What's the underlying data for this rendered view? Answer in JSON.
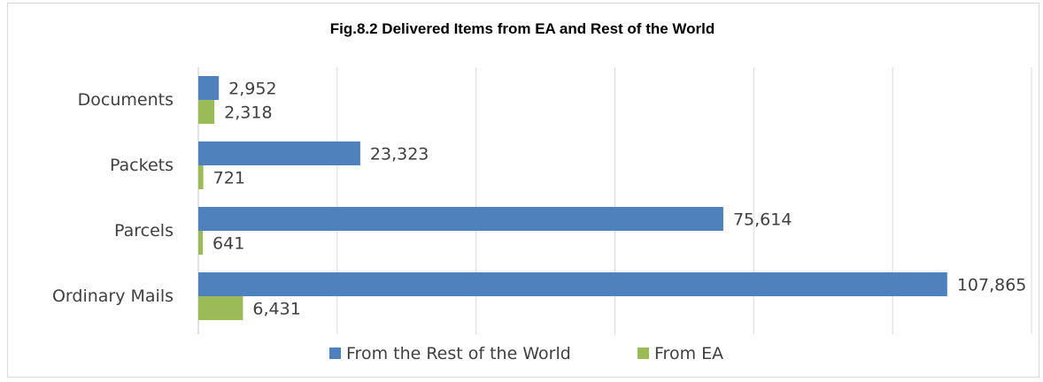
{
  "chart_data": {
    "type": "bar",
    "orientation": "horizontal",
    "title": "Fig.8.2 Delivered  Items from EA and Rest of the World",
    "categories": [
      "Documents",
      "Packets",
      "Parcels",
      "Ordinary Mails"
    ],
    "series": [
      {
        "name": "From the Rest of the World",
        "color": "#4F81BD",
        "values": [
          2952,
          23323,
          75614,
          107865
        ],
        "labels": [
          "2,952",
          "23,323",
          "75,614",
          "107,865"
        ]
      },
      {
        "name": "From EA",
        "color": "#9BBB59",
        "values": [
          2318,
          721,
          641,
          6431
        ],
        "labels": [
          "2,318",
          "721",
          "641",
          "6,431"
        ]
      }
    ],
    "xlim": [
      0,
      120000
    ],
    "grid": true,
    "legend": "bottom"
  }
}
